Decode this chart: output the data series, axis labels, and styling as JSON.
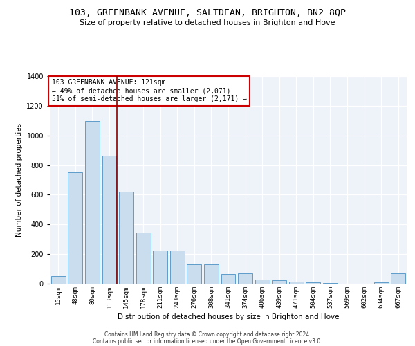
{
  "title": "103, GREENBANK AVENUE, SALTDEAN, BRIGHTON, BN2 8QP",
  "subtitle": "Size of property relative to detached houses in Brighton and Hove",
  "xlabel": "Distribution of detached houses by size in Brighton and Hove",
  "ylabel": "Number of detached properties",
  "categories": [
    "15sqm",
    "48sqm",
    "80sqm",
    "113sqm",
    "145sqm",
    "178sqm",
    "211sqm",
    "243sqm",
    "276sqm",
    "308sqm",
    "341sqm",
    "374sqm",
    "406sqm",
    "439sqm",
    "471sqm",
    "504sqm",
    "537sqm",
    "569sqm",
    "602sqm",
    "634sqm",
    "667sqm"
  ],
  "values": [
    50,
    750,
    1095,
    865,
    620,
    345,
    222,
    222,
    130,
    130,
    65,
    70,
    30,
    25,
    15,
    10,
    5,
    2,
    2,
    10,
    70
  ],
  "bar_color": "#c9ddef",
  "bar_edge_color": "#4a90c4",
  "vline_color": "#8b0000",
  "annotation_text": "103 GREENBANK AVENUE: 121sqm\n← 49% of detached houses are smaller (2,071)\n51% of semi-detached houses are larger (2,171) →",
  "annotation_box_color": "white",
  "annotation_box_edge_color": "#cc0000",
  "ylim": [
    0,
    1400
  ],
  "yticks": [
    0,
    200,
    400,
    600,
    800,
    1000,
    1200,
    1400
  ],
  "footer_line1": "Contains HM Land Registry data © Crown copyright and database right 2024.",
  "footer_line2": "Contains public sector information licensed under the Open Government Licence v3.0.",
  "bg_color": "#eef2f9"
}
